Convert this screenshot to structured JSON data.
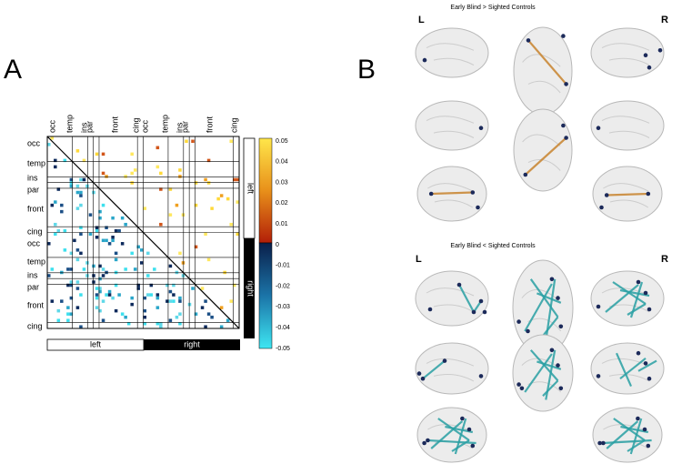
{
  "panel_a": {
    "label": "A",
    "row_labels": [
      "occ",
      "temp",
      "ins",
      "par",
      "front",
      "cing",
      "occ",
      "temp",
      "ins",
      "par",
      "front",
      "cing"
    ],
    "column_labels": [
      "occ",
      "temp",
      "ins",
      "par",
      "front",
      "cing",
      "occ",
      "temp",
      "ins",
      "par",
      "front",
      "cing"
    ],
    "colorbar_ticks": [
      0.05,
      0.04,
      0.03,
      0.02,
      0.01,
      0,
      -0.01,
      -0.02,
      -0.03,
      -0.04,
      -0.05
    ],
    "side_labels": [
      "left",
      "right"
    ],
    "bottom_labels": [
      "left",
      "right"
    ]
  },
  "panel_b": {
    "label": "B",
    "top": {
      "title": "Early Blind > Sighted Controls",
      "left": "L",
      "right": "R"
    },
    "bottom": {
      "title": "Early Blind < Sighted Controls",
      "left": "L",
      "right": "R"
    }
  }
}
